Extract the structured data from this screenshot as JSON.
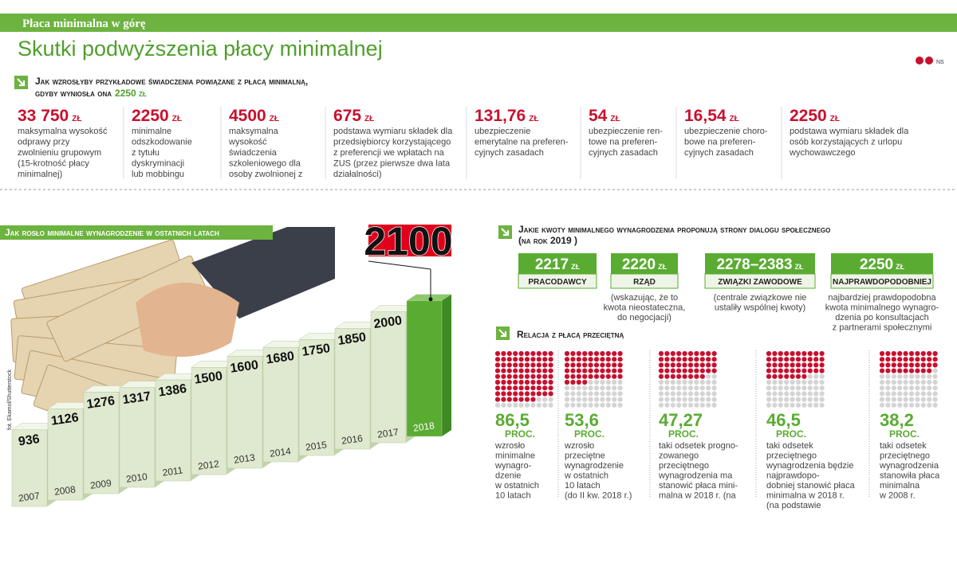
{
  "header": {
    "kicker": "Płaca minimalna w górę",
    "title": "Skutki podwyższenia płacy minimalnej",
    "logo": "NS"
  },
  "benefits": {
    "heading_line1": "Jak wzrosłyby przykładowe świadczenia powiązane z płacą minimalną,",
    "heading_line2": "gdyby wyniosła ona",
    "heading_amount": "2250 zł",
    "items": [
      {
        "amount": "33 750",
        "unit": "zł",
        "description": [
          "maksymalna wysokość",
          "odprawy przy",
          "zwolnieniu grupowym",
          "(15-krotność płacy",
          "minimalnej)"
        ]
      },
      {
        "amount": "2250",
        "unit": "zł",
        "description": [
          "minimalne",
          "odszkodowanie",
          "z tytułu",
          "dyskryminacji",
          "lub mobbingu"
        ]
      },
      {
        "amount": "4500",
        "unit": "zł",
        "description": [
          "maksymalna",
          "wysokość",
          "świadczenia",
          "szkoleniowego dla",
          "osoby zwolnionej z"
        ]
      },
      {
        "amount": "675",
        "unit": "zł",
        "description": [
          "podstawa wymiaru składek dla",
          "przedsiębiorcy korzystającego",
          "z preferencji we wpłatach na",
          "ZUS (przez pierwsze dwa lata",
          "działalności)"
        ]
      },
      {
        "amount": "131,76",
        "unit": "zł",
        "description": [
          "ubezpieczenie",
          "emerytalne na preferen-",
          "cyjnych zasadach"
        ]
      },
      {
        "amount": "54",
        "unit": "zł",
        "description": [
          "ubezpieczenie ren-",
          "towe na preferen-",
          "cyjnych zasadach"
        ]
      },
      {
        "amount": "16,54",
        "unit": "zł",
        "description": [
          "ubezpieczenie choro-",
          "bowe na preferen-",
          "cyjnych zasadach"
        ]
      },
      {
        "amount": "2250",
        "unit": "zł",
        "description": [
          "podstawa wymiaru składek dla",
          "osób korzystających z urlopu",
          "wychowawczego"
        ]
      }
    ]
  },
  "photo_credit": "fot. Ekamol/Shutterstock",
  "proposals": {
    "heading_line1": "Jakie kwoty minimalnego wynagrodzenia proponują strony dialogu społecznego",
    "heading_line2": "(na rok 2019 )",
    "items": [
      {
        "amount": "2217",
        "unit": "zł",
        "label": "Pracodawcy",
        "note": []
      },
      {
        "amount": "2220",
        "unit": "zł",
        "label": "Rząd",
        "note": [
          "(wskazując, że to",
          "kwota nieostateczna,",
          "do negocjacji)"
        ]
      },
      {
        "amount": "2278–2383",
        "unit": "zł",
        "label": "Związki zawodowe",
        "note": [
          "(centrale związkowe nie",
          "ustaliły wspólnej kwoty)"
        ]
      },
      {
        "amount": "2250",
        "unit": "zł",
        "label": "Najprawdopodobniej",
        "note": [
          "najbardziej prawdopodobna",
          "kwota minimalnego wynagro-",
          "dzenia po konsultacjach",
          "z partnerami społecznymi"
        ]
      }
    ]
  },
  "chart_data": [
    {
      "type": "bar3d",
      "title": "Jak rosło minimalne wynagrodzenie w  ostatnich latach",
      "categories": [
        "2007",
        "2008",
        "2009",
        "2010",
        "2011",
        "2012",
        "2013",
        "2014",
        "2015",
        "2016",
        "2017",
        "2018"
      ],
      "values": [
        936,
        1126,
        1276,
        1317,
        1386,
        1500,
        1600,
        1680,
        1750,
        1850,
        2000,
        2100
      ],
      "colors": [
        "#dfe9cf",
        "#dfe9cf",
        "#dfe9cf",
        "#dfe9cf",
        "#dfe9cf",
        "#dfe9cf",
        "#dfe9cf",
        "#dfe9cf",
        "#dfe9cf",
        "#dfe9cf",
        "#dfe9cf",
        "#5aab32"
      ],
      "ylim": [
        0,
        2400
      ]
    },
    {
      "type": "dots",
      "title": "Relacja z płacą przeciętną",
      "values": [
        86.5,
        53.6,
        47.27,
        46.5,
        38.2
      ],
      "value_labels": [
        "86,5",
        "53,6",
        "47,27",
        "46,5",
        "38,2"
      ],
      "unit": "proc.",
      "color": "#c8102e",
      "descriptions": [
        [
          "wzrosło",
          "minimalne",
          "wynagro-",
          "dzenie",
          "w ostatnich",
          "10 latach"
        ],
        [
          "wzrosło",
          "przeciętne",
          "wynagrodzenie",
          "w ostatnich",
          "10 latach",
          "(do II kw. 2018 r.)"
        ],
        [
          "taki odsetek progno-",
          "zowanego",
          "przeciętnego",
          "wynagrodzenia ma",
          "stanowić płaca mini-",
          "malna w 2018 r. (na"
        ],
        [
          "taki odsetek",
          "przeciętnego",
          "wynagrodzenia będzie",
          "najprawdopo-",
          "dobniej stanowić płaca",
          "minimalna w 2018 r.",
          "(na podstawie"
        ],
        [
          "taki odsetek",
          "przeciętnego",
          "wynagrodzenia",
          "stanowiła płaca",
          "minimalna",
          "w 2008 r."
        ]
      ]
    }
  ]
}
